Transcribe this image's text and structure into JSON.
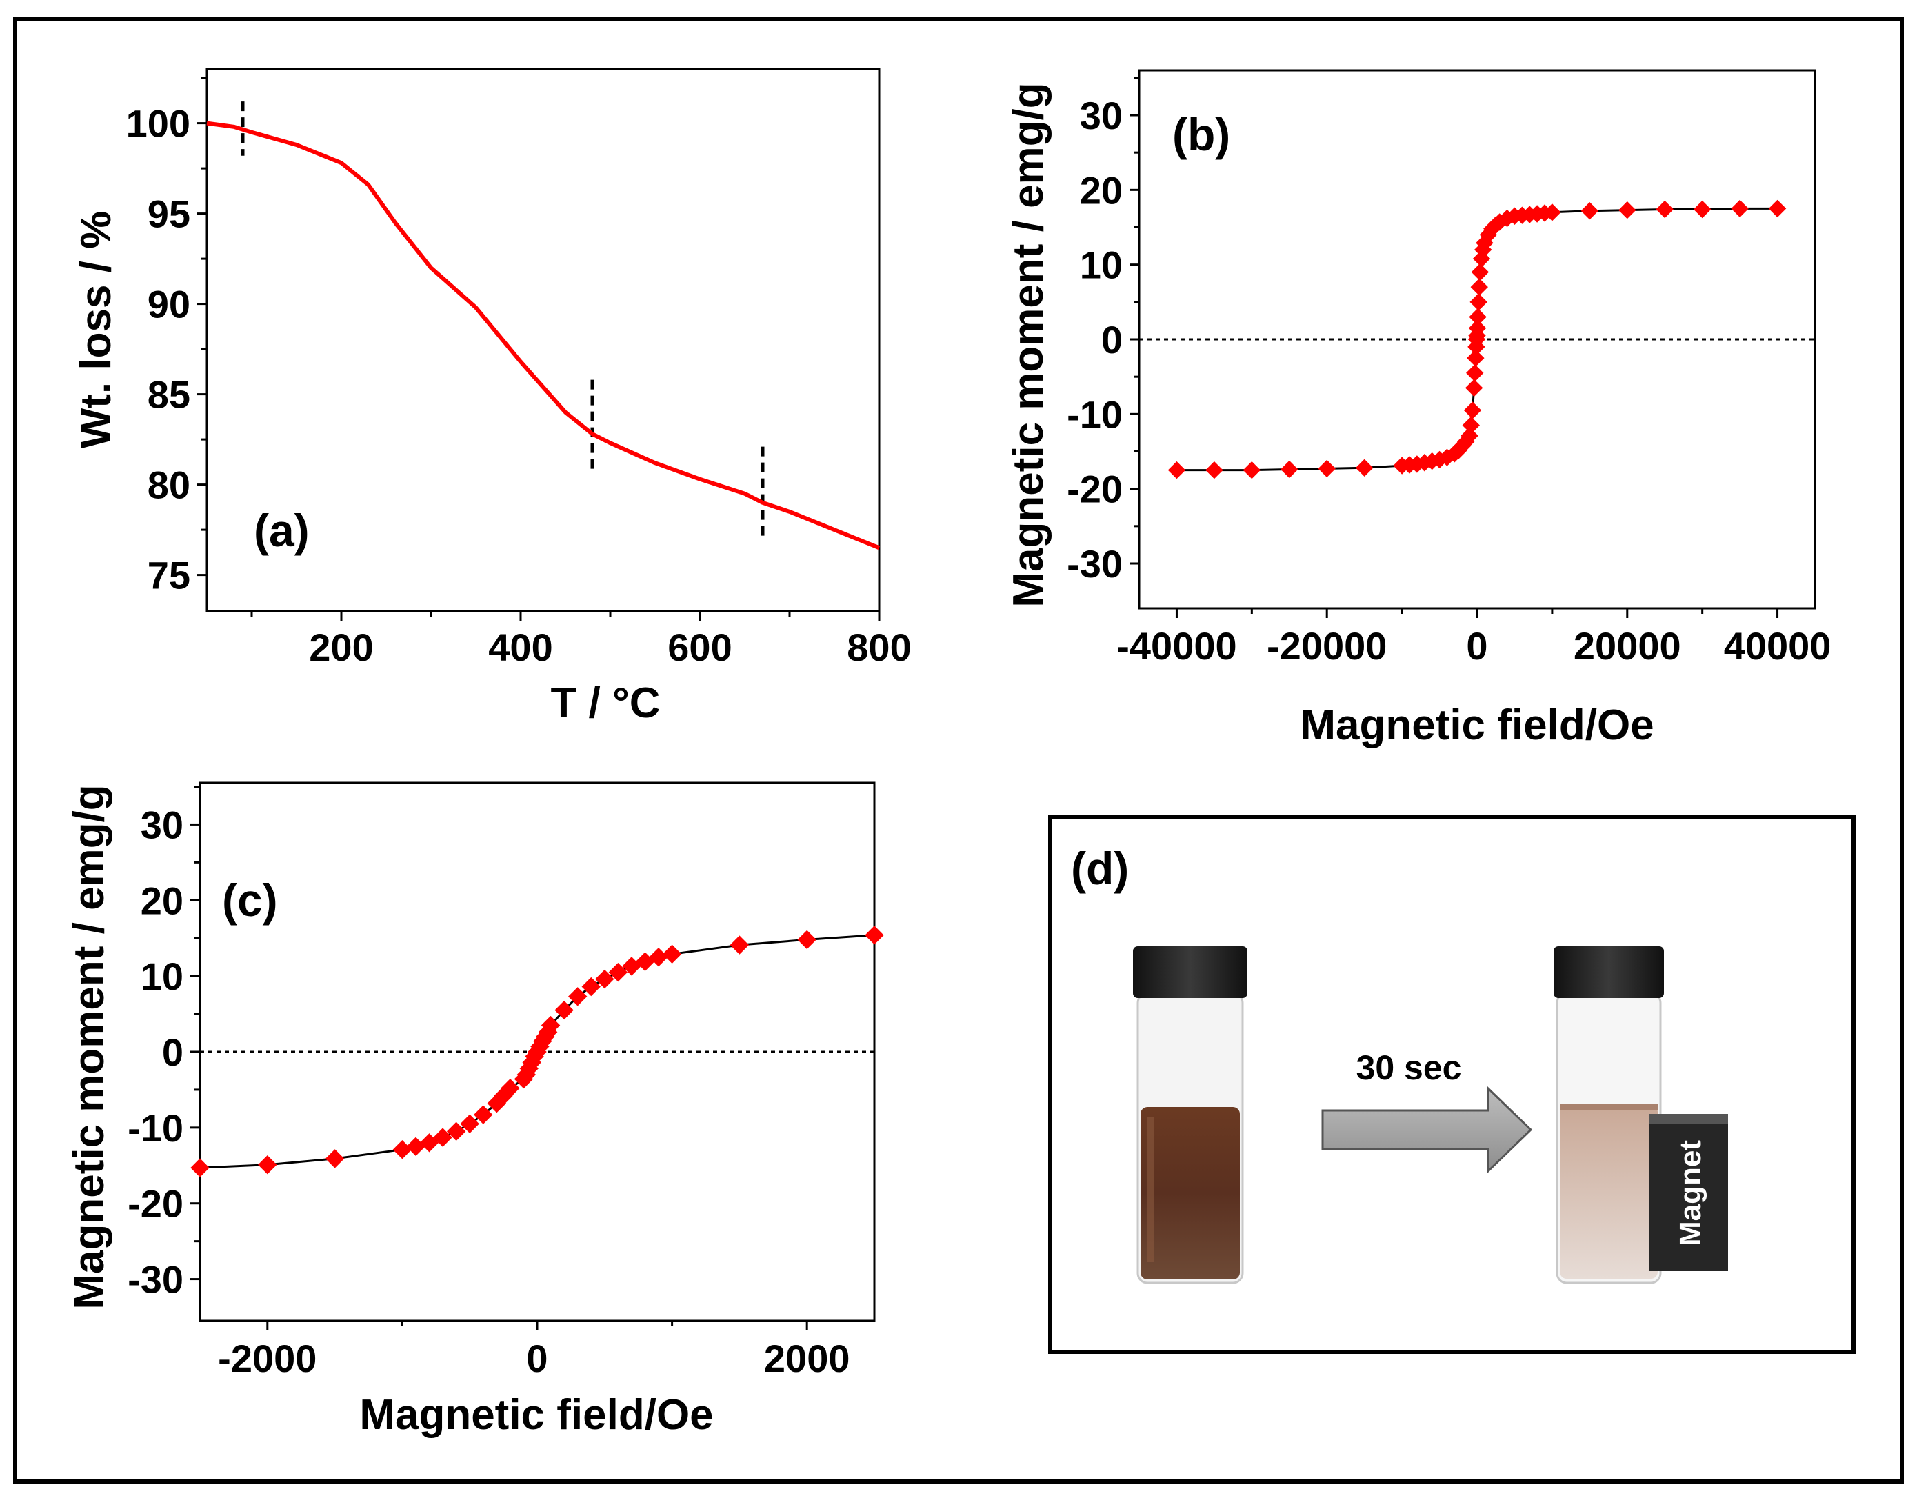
{
  "figure": {
    "colors": {
      "curve": "#ff0000",
      "marker": "#ff0000",
      "axis": "#000000",
      "dashed": "#000000",
      "arrow_fill": "#a3a3a3",
      "magnet": "#2a2a2a"
    }
  },
  "chart_data": [
    {
      "id": "a",
      "type": "line",
      "panel_label": "(a)",
      "xlabel": "T / °C",
      "ylabel": "Wt. loss / %",
      "xlim": [
        50,
        800
      ],
      "ylim": [
        73,
        103
      ],
      "xticks": [
        200,
        400,
        600,
        800
      ],
      "yticks": [
        75,
        80,
        85,
        90,
        95,
        100
      ],
      "x": [
        50,
        80,
        100,
        150,
        200,
        230,
        260,
        300,
        350,
        400,
        450,
        480,
        500,
        550,
        600,
        650,
        670,
        700,
        750,
        800
      ],
      "y": [
        100,
        99.8,
        99.5,
        98.8,
        97.8,
        96.6,
        94.5,
        92.0,
        89.8,
        86.8,
        84.0,
        82.8,
        82.3,
        81.2,
        80.3,
        79.5,
        79.0,
        78.5,
        77.5,
        76.5
      ],
      "markers": [
        {
          "x": 90,
          "y1": 98.2,
          "y2": 101.2
        },
        {
          "x": 480,
          "y1": 80.6,
          "y2": 85.8
        },
        {
          "x": 670,
          "y1": 77.0,
          "y2": 82.1
        }
      ]
    },
    {
      "id": "b",
      "type": "scatter",
      "panel_label": "(b)",
      "xlabel": "Magnetic field/Oe",
      "ylabel": "Magnetic moment / emg/g",
      "xlim": [
        -45000,
        45000
      ],
      "ylim": [
        -36,
        36
      ],
      "xticks": [
        -40000,
        -20000,
        0,
        20000,
        40000
      ],
      "xticklabels": [
        "-40000",
        "-20000",
        "0",
        "20000",
        "40000"
      ],
      "yticks": [
        -30,
        -20,
        -10,
        0,
        10,
        20,
        30
      ],
      "zero_line": true,
      "x": [
        -40000,
        -35000,
        -30000,
        -25000,
        -20000,
        -15000,
        -10000,
        -9000,
        -8000,
        -7000,
        -6000,
        -5000,
        -4000,
        -3000,
        -2500,
        -2000,
        -1500,
        -1000,
        -800,
        -600,
        -400,
        -300,
        -200,
        -100,
        -50,
        0,
        50,
        100,
        200,
        300,
        400,
        600,
        800,
        1000,
        1500,
        2000,
        2500,
        3000,
        4000,
        5000,
        6000,
        7000,
        8000,
        9000,
        10000,
        15000,
        20000,
        25000,
        30000,
        35000,
        40000
      ],
      "y": [
        -17.5,
        -17.5,
        -17.5,
        -17.4,
        -17.3,
        -17.2,
        -16.9,
        -16.8,
        -16.7,
        -16.5,
        -16.3,
        -16.1,
        -15.8,
        -15.3,
        -14.9,
        -14.3,
        -13.7,
        -12.9,
        -11.5,
        -9.5,
        -6.5,
        -4.5,
        -2.5,
        -1.0,
        0,
        0.5,
        1.5,
        3.0,
        5.0,
        7.0,
        9.0,
        10.8,
        12.0,
        12.9,
        14.0,
        14.8,
        15.3,
        15.7,
        16.2,
        16.5,
        16.6,
        16.7,
        16.8,
        16.9,
        17.0,
        17.2,
        17.3,
        17.4,
        17.4,
        17.5,
        17.5
      ]
    },
    {
      "id": "c",
      "type": "scatter",
      "panel_label": "(c)",
      "xlabel": "Magnetic field/Oe",
      "ylabel": "Magnetic moment / emg/g",
      "xlim": [
        -2500,
        2500
      ],
      "ylim": [
        -35.5,
        35.5
      ],
      "xticks": [
        -2000,
        0,
        2000
      ],
      "xticklabels": [
        "-2000",
        "0",
        "2000"
      ],
      "yticks": [
        -30,
        -20,
        -10,
        0,
        10,
        20,
        30
      ],
      "zero_line": true,
      "x": [
        -2500,
        -2000,
        -1500,
        -1000,
        -900,
        -800,
        -700,
        -600,
        -500,
        -400,
        -300,
        -250,
        -200,
        -100,
        -80,
        -60,
        -40,
        -20,
        0,
        20,
        40,
        60,
        80,
        100,
        200,
        300,
        400,
        500,
        600,
        700,
        800,
        900,
        1000,
        1500,
        2000,
        2500
      ],
      "y": [
        -15.3,
        -14.9,
        -14.1,
        -12.9,
        -12.5,
        -12.0,
        -11.3,
        -10.5,
        -9.5,
        -8.3,
        -6.8,
        -5.8,
        -4.8,
        -3.6,
        -3.0,
        -2.2,
        -1.4,
        -0.6,
        0.0,
        0.7,
        1.4,
        2.0,
        2.6,
        3.5,
        5.5,
        7.3,
        8.6,
        9.6,
        10.5,
        11.3,
        11.9,
        12.5,
        12.9,
        14.1,
        14.8,
        15.4
      ]
    }
  ],
  "panel_d": {
    "label": "(d)",
    "arrow_label": "30 sec",
    "magnet_label": "Magnet"
  }
}
